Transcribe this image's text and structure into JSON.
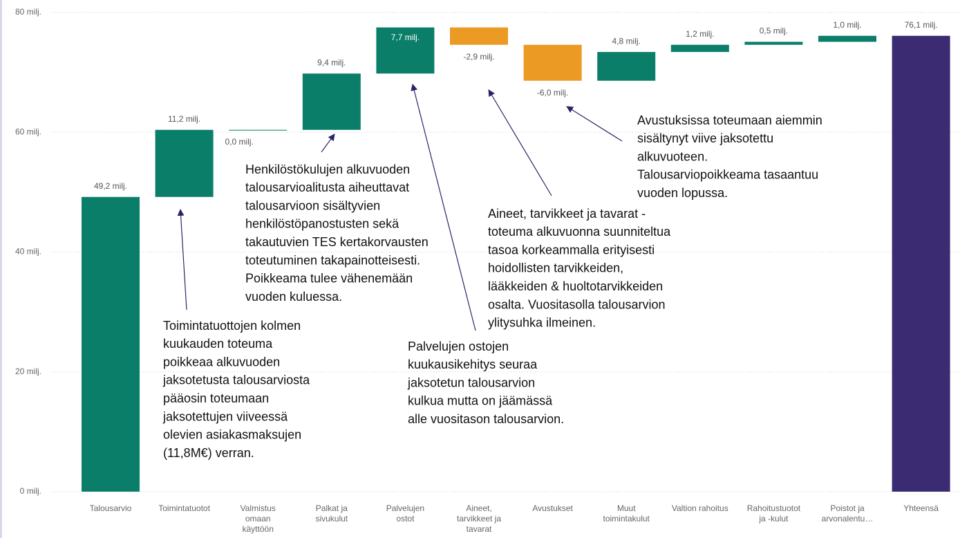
{
  "chart_data": {
    "type": "waterfall",
    "categories": [
      "Talousarvio",
      "Toimintatuotot",
      "Valmistus\nomaan\nkäyttöön",
      "Palkat ja\nsivukulut",
      "Palvelujen\nostot",
      "Aineet,\ntarvikkeet ja\ntavarat",
      "Avustukset",
      "Muut\ntoimintakulut",
      "Valtion rahoitus",
      "Rahoitustuotot\nja -kulut",
      "Poistot ja\narvonalentu…",
      "Yhteensä"
    ],
    "values": [
      49.2,
      11.2,
      0.0,
      9.4,
      7.7,
      -2.9,
      -6.0,
      4.8,
      1.2,
      0.5,
      1.0,
      76.1
    ],
    "value_labels": [
      "49,2 milj.",
      "11,2 milj.",
      "0,0 milj.",
      "9,4 milj.",
      "7,7 milj.",
      "-2,9 milj.",
      "-6,0 milj.",
      "4,8 milj.",
      "1,2 milj.",
      "0,5 milj.",
      "1,0 milj.",
      "76,1 milj."
    ],
    "colors": {
      "increase": "#0b7e69",
      "decrease": "#eb9b24",
      "total": "#3b2b72"
    },
    "ylim": [
      0,
      80
    ],
    "yticks": [
      {
        "value": 0,
        "label": "0 milj."
      },
      {
        "value": 20,
        "label": "20 milj."
      },
      {
        "value": 40,
        "label": "40 milj."
      },
      {
        "value": 60,
        "label": "60 milj."
      },
      {
        "value": 80,
        "label": "80 milj."
      }
    ],
    "grid": true,
    "annotations": [
      [
        "Toimintatuottojen kolmen",
        "kuukauden toteuma",
        "poikkeaa alkuvuoden",
        "jaksotetusta talousarviosta",
        "pääosin toteumaan",
        "jaksotettujen viiveessä",
        "olevien asiakasmaksujen",
        "(11,8M€) verran."
      ],
      [
        "Henkilöstökulujen alkuvuoden",
        "talousarvioalitusta aiheuttavat",
        "talousarvioon sisältyvien",
        "henkilöstöpanostusten sekä",
        "takautuvien TES kertakorvausten",
        "toteutuminen takapainotteisesti.",
        "Poikkeama tulee vähenemään",
        "vuoden kuluessa."
      ],
      [
        "Palvelujen ostojen",
        "kuukausikehitys seuraa",
        "jaksotetun talousarvion",
        "kulkua mutta on jäämässä",
        "alle vuositason talousarvion."
      ],
      [
        "Aineet, tarvikkeet ja tavarat -",
        "toteuma alkuvuonna suunniteltua",
        "tasoa korkeammalla erityisesti",
        "hoidollisten tarvikkeiden,",
        "lääkkeiden & huoltotarvikkeiden",
        "osalta. Vuositasolla talousarvion",
        "ylitysuhka ilmeinen."
      ],
      [
        "Avustuksissa toteumaan aiemmin",
        "sisältynyt viive jaksotettu",
        "alkuvuoteen.",
        "Talousarviopoikkeama tasaantuu",
        "vuoden lopussa."
      ]
    ]
  }
}
